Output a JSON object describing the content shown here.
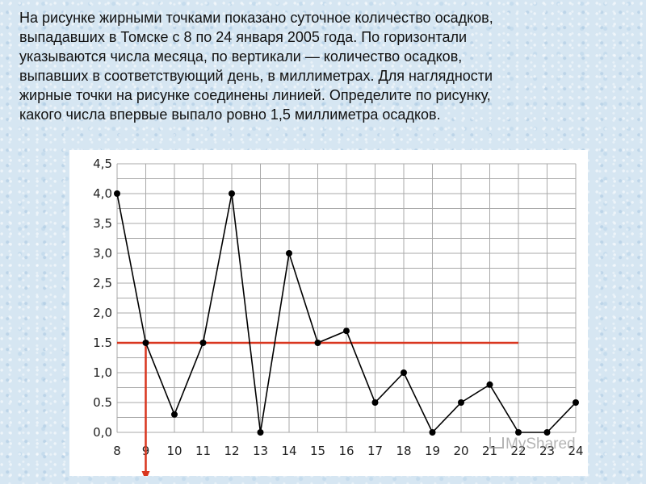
{
  "question": "На рисунке жирными точками показано суточное количество осадков,\nвыпадавших в Томске с 8 по 24 января 2005 года. По горизонтали\nуказываются числа месяца, по вертикали — количество осадков,\nвыпавших в соответствующий день, в миллиметрах. Для наглядности\nжирные точки на рисунке соединены линией. Определите по рисунку,\nкакого числа впервые выпало ровно 1,5 миллиметра осадков.",
  "watermark": "MyShared",
  "chart_data": {
    "type": "line",
    "title": "",
    "xlabel": "",
    "ylabel": "",
    "x": [
      8,
      9,
      10,
      11,
      12,
      13,
      14,
      15,
      16,
      17,
      18,
      19,
      20,
      21,
      22,
      23,
      24
    ],
    "y": [
      4.0,
      1.5,
      0.3,
      1.5,
      4.0,
      0.0,
      3.0,
      1.5,
      1.7,
      0.5,
      1.0,
      0.0,
      0.5,
      0.8,
      0.0,
      0.0,
      0.5
    ],
    "xlim": [
      8,
      24
    ],
    "ylim": [
      0,
      4.5
    ],
    "x_tick_labels": [
      "8",
      "9",
      "10",
      "11",
      "12",
      "13",
      "14",
      "15",
      "16",
      "17",
      "18",
      "19",
      "20",
      "21",
      "22",
      "23",
      "24"
    ],
    "y_tick_labels": [
      "0,0",
      "0.5",
      "1,0",
      "1.5",
      "2,0",
      "2,5",
      "3,0",
      "3,5",
      "4,0",
      "4,5"
    ],
    "grid": true,
    "line_color": "#000000",
    "annotation": {
      "type": "horizontal-line-with-arrow",
      "y_value": 1.5,
      "x_from": 8,
      "x_to": 22,
      "arrow_at_x": 9,
      "color": "#d9361f"
    }
  }
}
